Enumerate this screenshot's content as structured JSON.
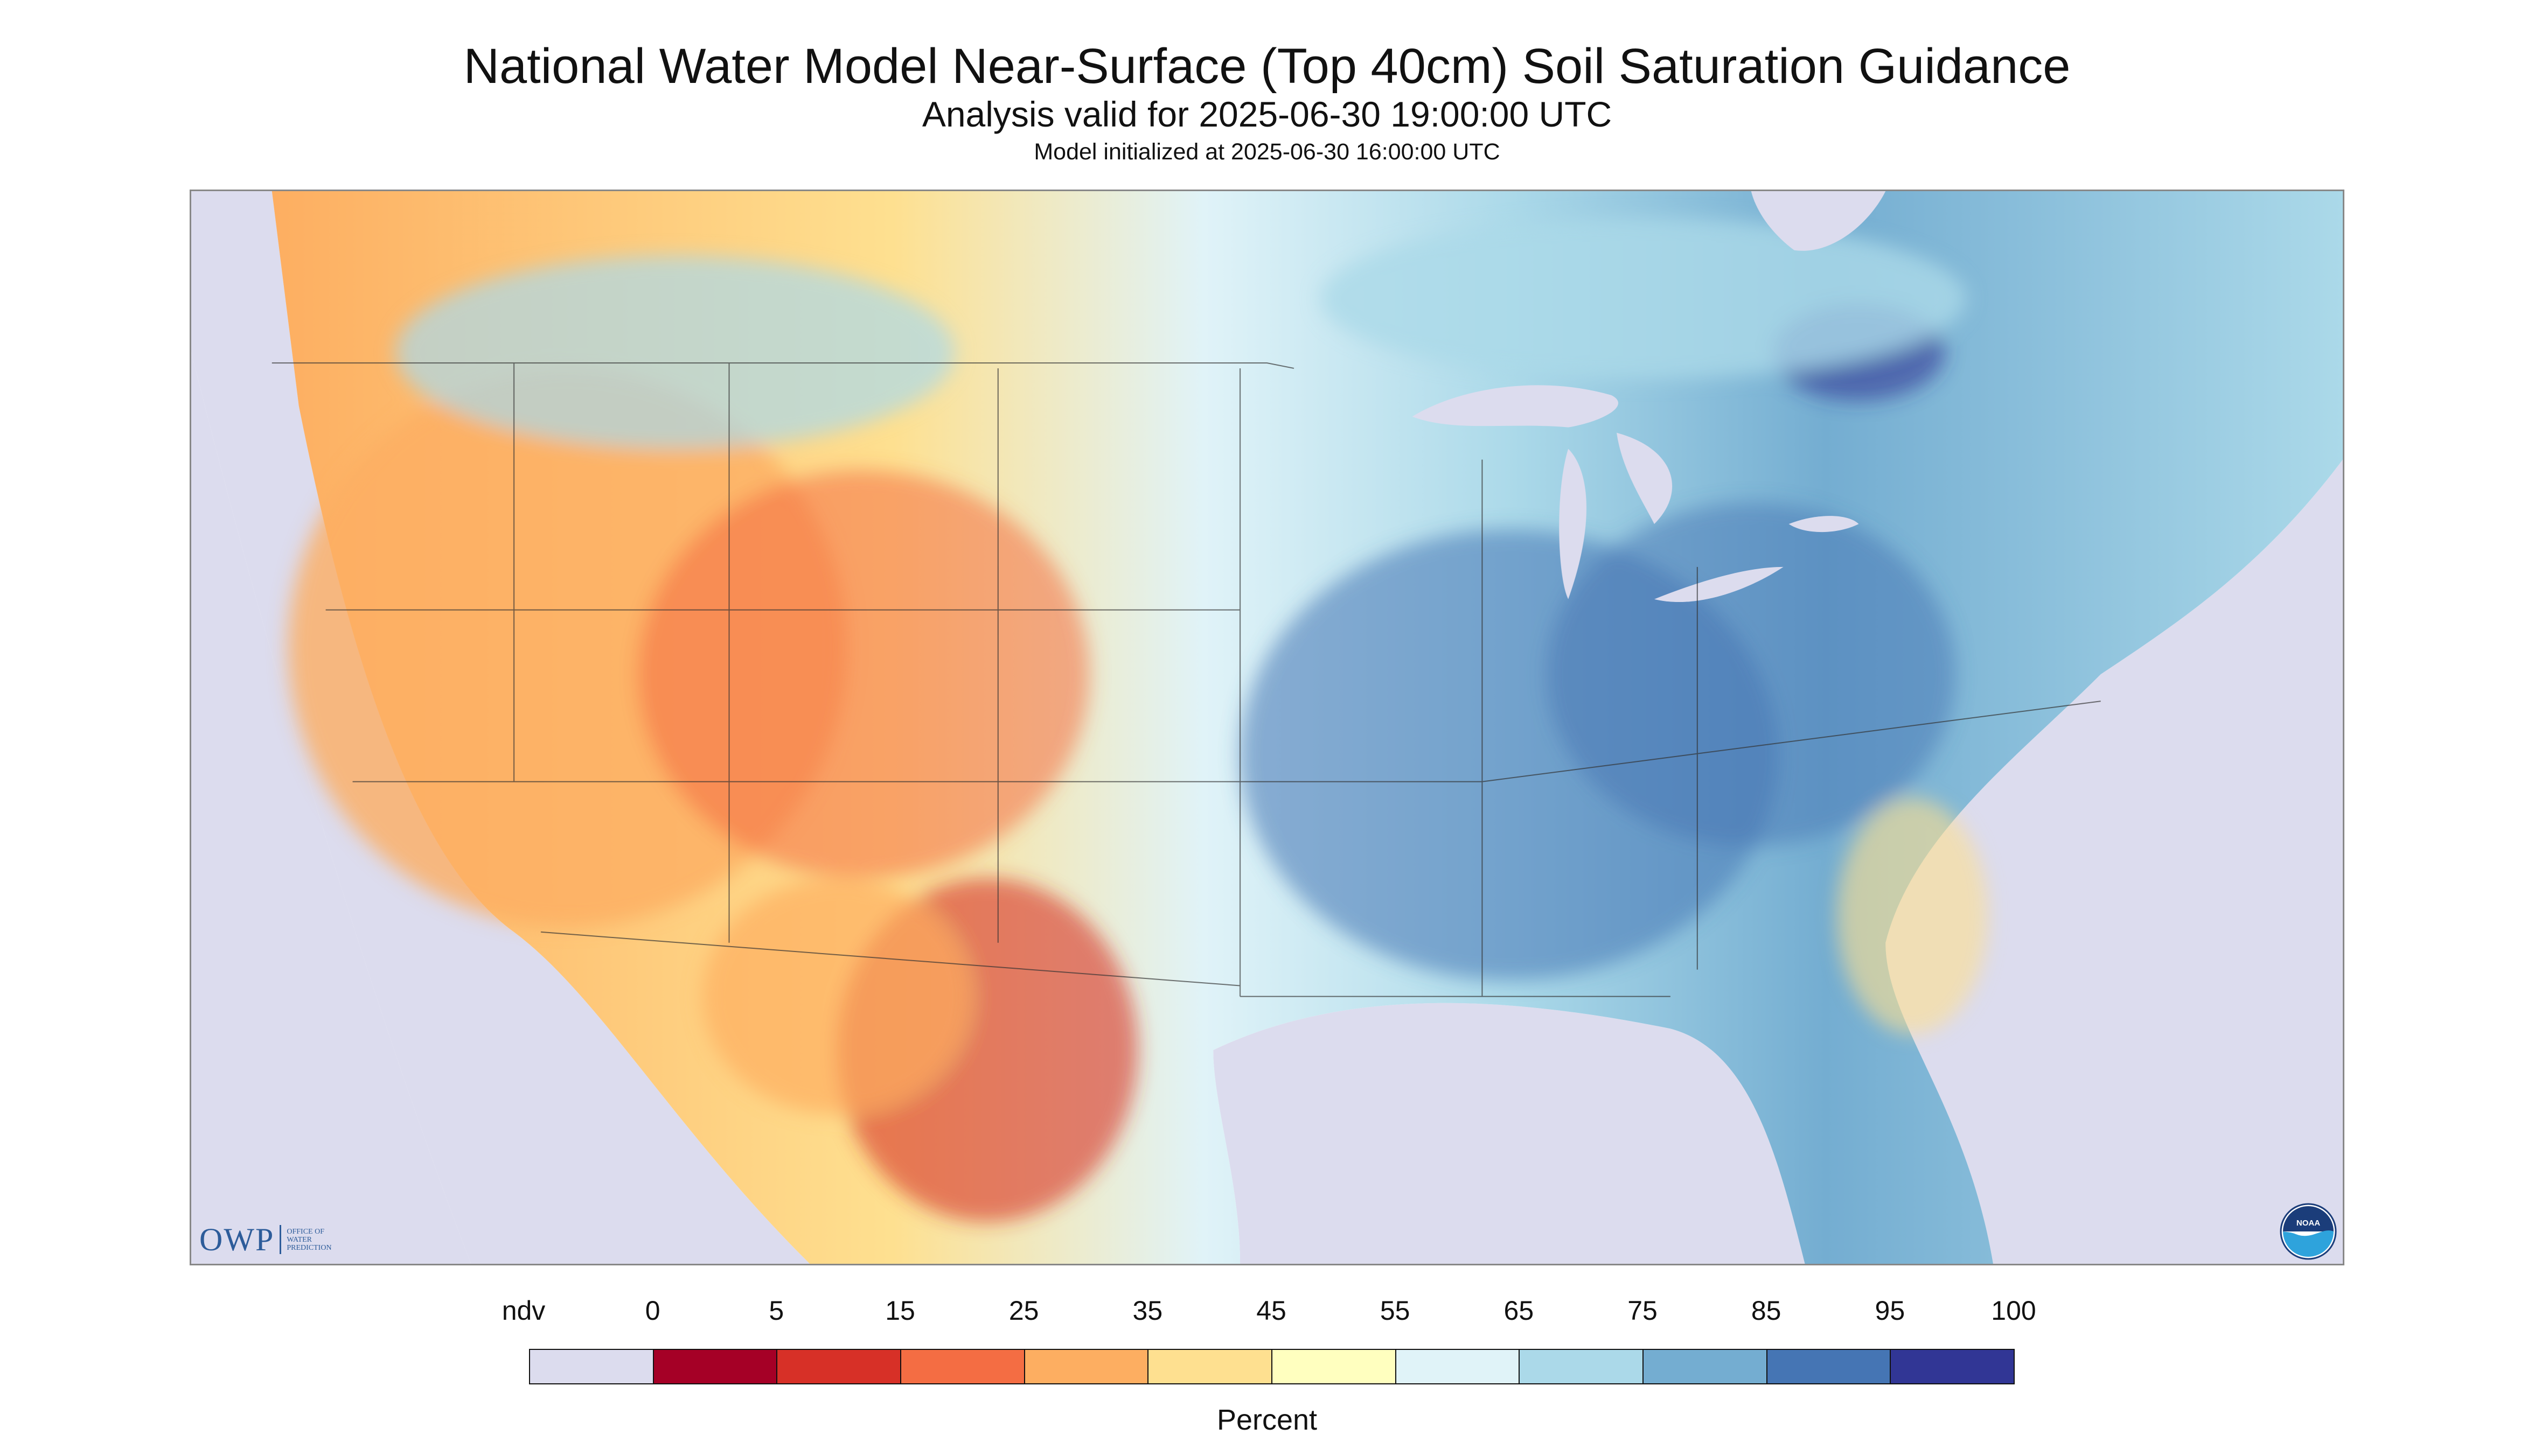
{
  "title": "National Water Model Near-Surface (Top 40cm) Soil Saturation Guidance",
  "subtitle": "Analysis valid for 2025-06-30 19:00:00 UTC",
  "initialized": "Model initialized at 2025-06-30 16:00:00 UTC",
  "legend": {
    "unit": "Percent",
    "labels": [
      "ndv",
      "0",
      "5",
      "15",
      "25",
      "35",
      "45",
      "55",
      "65",
      "75",
      "85",
      "95",
      "100"
    ],
    "colors": [
      "#dcdcee",
      "#a50026",
      "#d73027",
      "#f46d43",
      "#fdae61",
      "#fee090",
      "#ffffbf",
      "#e0f3f8",
      "#abd9e9",
      "#74add1",
      "#4575b4",
      "#313695"
    ]
  },
  "logos": {
    "owp": "OWP",
    "owp_sub": [
      "OFFICE OF",
      "WATER",
      "PREDICTION"
    ],
    "noaa": "NOAA"
  },
  "colors": {
    "no_data": "#dcdcee",
    "frame": "#888888",
    "owp_blue": "#2d5c9a"
  }
}
